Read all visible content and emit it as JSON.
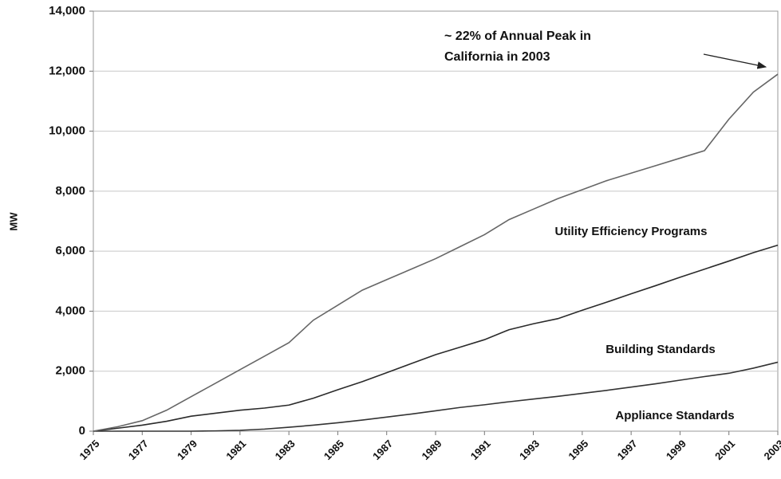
{
  "chart_data": {
    "type": "stacked-line",
    "y_label": "MW",
    "annotation": [
      "~  22% of Annual Peak in",
      "California in 2003"
    ],
    "x": [
      1975,
      1976,
      1977,
      1978,
      1979,
      1980,
      1981,
      1982,
      1983,
      1984,
      1985,
      1986,
      1987,
      1988,
      1989,
      1990,
      1991,
      1992,
      1993,
      1994,
      1995,
      1996,
      1997,
      1998,
      1999,
      2000,
      2001,
      2002,
      2003
    ],
    "xlim": [
      1975,
      2003
    ],
    "xticks": [
      1975,
      1977,
      1979,
      1981,
      1983,
      1985,
      1987,
      1989,
      1991,
      1993,
      1995,
      1997,
      1999,
      2001,
      2003
    ],
    "ylim": [
      0,
      14000
    ],
    "yticks": [
      0,
      {
        "value": 2000,
        "label": "2,000"
      },
      {
        "value": 4000,
        "label": "4,000"
      },
      {
        "value": 6000,
        "label": "6,000"
      },
      {
        "value": 8000,
        "label": "8,000"
      },
      {
        "value": 10000,
        "label": "10,000"
      },
      {
        "value": 12000,
        "label": "12,000"
      },
      {
        "value": 14000,
        "label": "14,000"
      }
    ],
    "grid": true,
    "series": [
      {
        "name": "Appliance Standards",
        "color": "#333333",
        "values": [
          0,
          0,
          0,
          0,
          0,
          10,
          30,
          70,
          130,
          200,
          280,
          370,
          470,
          570,
          680,
          790,
          880,
          980,
          1070,
          1160,
          1260,
          1360,
          1470,
          1580,
          1700,
          1820,
          1930,
          2100,
          2300
        ]
      },
      {
        "name": "Building Standards",
        "color": "#2a2a2a",
        "values": [
          0,
          100,
          200,
          330,
          500,
          590,
          670,
          700,
          740,
          900,
          1100,
          1280,
          1480,
          1680,
          1870,
          2010,
          2170,
          2400,
          2510,
          2590,
          2770,
          2940,
          3110,
          3270,
          3430,
          3580,
          3740,
          3850,
          3900
        ]
      },
      {
        "name": "Utility Efficiency Programs",
        "color": "#666666",
        "values": [
          0,
          50,
          150,
          370,
          650,
          1000,
          1350,
          1730,
          2080,
          2600,
          2820,
          3050,
          3100,
          3150,
          3200,
          3350,
          3500,
          3670,
          3820,
          4000,
          4020,
          4050,
          4020,
          4000,
          3970,
          3950,
          4730,
          5350,
          5700
        ]
      }
    ]
  }
}
